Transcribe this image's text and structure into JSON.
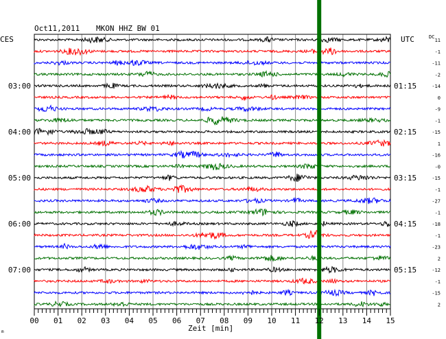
{
  "header": {
    "date": "Oct11,2011",
    "station": "MKON HHZ BW 01",
    "left_zone": "CES",
    "right_zone": "UTC",
    "dc_label": "DC"
  },
  "chart_data": {
    "type": "line",
    "title": "Oct11,2011 MKON HHZ BW 01",
    "xlabel": "Zeit [min]",
    "xlim": [
      0,
      15
    ],
    "x_ticks": [
      "00",
      "01",
      "02",
      "03",
      "04",
      "05",
      "06",
      "07",
      "08",
      "09",
      "10",
      "11",
      "12",
      "13",
      "14",
      "15"
    ],
    "left_time_labels": [
      {
        "trace": 4,
        "label": "03:00"
      },
      {
        "trace": 8,
        "label": "04:00"
      },
      {
        "trace": 12,
        "label": "05:00"
      },
      {
        "trace": 16,
        "label": "06:00"
      },
      {
        "trace": 20,
        "label": "07:00"
      }
    ],
    "right_time_labels": [
      {
        "trace": 4,
        "label": "01:15"
      },
      {
        "trace": 8,
        "label": "02:15"
      },
      {
        "trace": 12,
        "label": "03:15"
      },
      {
        "trace": 16,
        "label": "04:15"
      },
      {
        "trace": 20,
        "label": "05:15"
      }
    ],
    "dc_offsets": [
      "11",
      "-1",
      "-11",
      "-2",
      "-14",
      "0",
      "-9",
      "-1",
      "-15",
      "1",
      "-16",
      "-0",
      "-15",
      "-1",
      "-27",
      "-1",
      "-18",
      "-1",
      "-23",
      "2",
      "-12",
      "-1",
      "-15",
      "2"
    ],
    "trace_colors": [
      "#000000",
      "#ff0000",
      "#0000ff",
      "#007000"
    ],
    "trace_count": 24,
    "event_marker": {
      "x_min": 12.0,
      "color": "#007000"
    },
    "grid": true
  },
  "footer_mark": "m"
}
